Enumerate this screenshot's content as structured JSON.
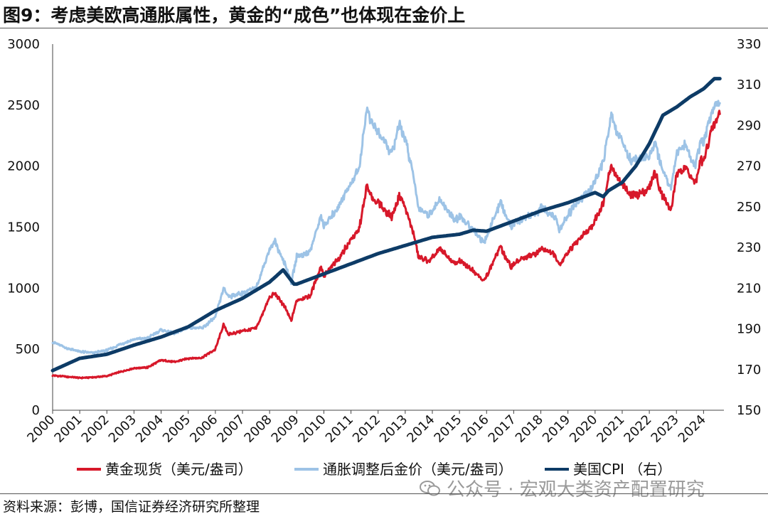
{
  "title": "图9：考虑美欧高通胀属性，黄金的“成色”也体现在金价上",
  "source": "资料来源：彭博，国信证券经济研究所整理",
  "watermark": "公众号 · 宏观大类资产配置研究",
  "colors": {
    "gold_spot": "#d7182a",
    "gold_real": "#9dc3e6",
    "cpi": "#0d3b66",
    "axis": "#444444"
  },
  "chart_data": {
    "type": "line",
    "x_range": [
      2000,
      2024.75
    ],
    "ylim_left": [
      0,
      3000
    ],
    "ylim_right": [
      150,
      330
    ],
    "y_ticks_left": [
      0,
      500,
      1000,
      1500,
      2000,
      2500,
      3000
    ],
    "y_ticks_right": [
      150,
      170,
      190,
      210,
      230,
      250,
      270,
      290,
      310,
      330
    ],
    "x_tick_labels": [
      "2000",
      "2001",
      "2002",
      "2003",
      "2004",
      "2005",
      "2006",
      "2007",
      "2008",
      "2009",
      "2010",
      "2011",
      "2012",
      "2013",
      "2014",
      "2015",
      "2016",
      "2017",
      "2018",
      "2019",
      "2020",
      "2021",
      "2022",
      "2023",
      "2024"
    ],
    "grid": false,
    "legend_position": "bottom",
    "series": [
      {
        "name": "黄金现货（美元/盎司）",
        "axis": "left",
        "color_key": "gold_spot",
        "points": [
          [
            2000,
            285
          ],
          [
            2000.5,
            275
          ],
          [
            2001,
            265
          ],
          [
            2001.5,
            270
          ],
          [
            2002,
            280
          ],
          [
            2002.5,
            315
          ],
          [
            2003,
            345
          ],
          [
            2003.5,
            350
          ],
          [
            2004,
            410
          ],
          [
            2004.5,
            395
          ],
          [
            2005,
            425
          ],
          [
            2005.5,
            430
          ],
          [
            2006,
            500
          ],
          [
            2006.3,
            700
          ],
          [
            2006.5,
            620
          ],
          [
            2007,
            650
          ],
          [
            2007.5,
            670
          ],
          [
            2008,
            920
          ],
          [
            2008.2,
            960
          ],
          [
            2008.6,
            830
          ],
          [
            2008.8,
            730
          ],
          [
            2009,
            900
          ],
          [
            2009.5,
            940
          ],
          [
            2009.9,
            1180
          ],
          [
            2010,
            1100
          ],
          [
            2010.5,
            1230
          ],
          [
            2011,
            1400
          ],
          [
            2011.3,
            1480
          ],
          [
            2011.6,
            1850
          ],
          [
            2011.7,
            1760
          ],
          [
            2012,
            1700
          ],
          [
            2012.5,
            1580
          ],
          [
            2012.8,
            1760
          ],
          [
            2013,
            1660
          ],
          [
            2013.3,
            1450
          ],
          [
            2013.5,
            1250
          ],
          [
            2013.9,
            1220
          ],
          [
            2014,
            1250
          ],
          [
            2014.3,
            1320
          ],
          [
            2014.8,
            1200
          ],
          [
            2015,
            1220
          ],
          [
            2015.5,
            1150
          ],
          [
            2015.9,
            1060
          ],
          [
            2016,
            1100
          ],
          [
            2016.5,
            1340
          ],
          [
            2016.9,
            1170
          ],
          [
            2017,
            1200
          ],
          [
            2017.5,
            1260
          ],
          [
            2017.9,
            1290
          ],
          [
            2018,
            1330
          ],
          [
            2018.5,
            1280
          ],
          [
            2018.7,
            1190
          ],
          [
            2019,
            1300
          ],
          [
            2019.5,
            1420
          ],
          [
            2019.9,
            1500
          ],
          [
            2020,
            1560
          ],
          [
            2020.3,
            1700
          ],
          [
            2020.6,
            2020
          ],
          [
            2020.8,
            1900
          ],
          [
            2021,
            1860
          ],
          [
            2021.3,
            1750
          ],
          [
            2021.7,
            1780
          ],
          [
            2022,
            1820
          ],
          [
            2022.2,
            1950
          ],
          [
            2022.5,
            1750
          ],
          [
            2022.8,
            1640
          ],
          [
            2023,
            1920
          ],
          [
            2023.3,
            2000
          ],
          [
            2023.7,
            1850
          ],
          [
            2023.9,
            2050
          ],
          [
            2024,
            2030
          ],
          [
            2024.3,
            2300
          ],
          [
            2024.5,
            2380
          ],
          [
            2024.6,
            2450
          ]
        ]
      },
      {
        "name": "通胀调整后金价（美元/盎司）",
        "axis": "left",
        "color_key": "gold_real",
        "points": [
          [
            2000,
            560
          ],
          [
            2000.5,
            510
          ],
          [
            2001,
            480
          ],
          [
            2001.5,
            470
          ],
          [
            2002,
            490
          ],
          [
            2002.5,
            540
          ],
          [
            2003,
            580
          ],
          [
            2003.5,
            590
          ],
          [
            2004,
            660
          ],
          [
            2004.5,
            630
          ],
          [
            2005,
            680
          ],
          [
            2005.5,
            670
          ],
          [
            2006,
            760
          ],
          [
            2006.3,
            1000
          ],
          [
            2006.5,
            930
          ],
          [
            2007,
            960
          ],
          [
            2007.5,
            1000
          ],
          [
            2008,
            1320
          ],
          [
            2008.2,
            1380
          ],
          [
            2008.6,
            1180
          ],
          [
            2008.8,
            1050
          ],
          [
            2009,
            1260
          ],
          [
            2009.5,
            1300
          ],
          [
            2009.9,
            1600
          ],
          [
            2010,
            1500
          ],
          [
            2010.5,
            1660
          ],
          [
            2011,
            1860
          ],
          [
            2011.3,
            1980
          ],
          [
            2011.6,
            2500
          ],
          [
            2011.7,
            2380
          ],
          [
            2012,
            2280
          ],
          [
            2012.5,
            2100
          ],
          [
            2012.8,
            2350
          ],
          [
            2013,
            2220
          ],
          [
            2013.3,
            1920
          ],
          [
            2013.5,
            1650
          ],
          [
            2013.9,
            1600
          ],
          [
            2014,
            1640
          ],
          [
            2014.3,
            1720
          ],
          [
            2014.8,
            1560
          ],
          [
            2015,
            1580
          ],
          [
            2015.5,
            1490
          ],
          [
            2015.9,
            1370
          ],
          [
            2016,
            1420
          ],
          [
            2016.5,
            1700
          ],
          [
            2016.9,
            1500
          ],
          [
            2017,
            1530
          ],
          [
            2017.5,
            1590
          ],
          [
            2017.9,
            1620
          ],
          [
            2018,
            1660
          ],
          [
            2018.5,
            1590
          ],
          [
            2018.7,
            1470
          ],
          [
            2019,
            1600
          ],
          [
            2019.5,
            1740
          ],
          [
            2019.9,
            1820
          ],
          [
            2020,
            1880
          ],
          [
            2020.3,
            2040
          ],
          [
            2020.6,
            2420
          ],
          [
            2020.8,
            2270
          ],
          [
            2021,
            2200
          ],
          [
            2021.3,
            2050
          ],
          [
            2021.7,
            2060
          ],
          [
            2022,
            2080
          ],
          [
            2022.2,
            2200
          ],
          [
            2022.5,
            1960
          ],
          [
            2022.8,
            1830
          ],
          [
            2023,
            2100
          ],
          [
            2023.3,
            2180
          ],
          [
            2023.7,
            2000
          ],
          [
            2023.9,
            2200
          ],
          [
            2024,
            2180
          ],
          [
            2024.3,
            2450
          ],
          [
            2024.5,
            2530
          ],
          [
            2024.6,
            2500
          ]
        ]
      },
      {
        "name": "美国CPI （右）",
        "axis": "right",
        "color_key": "cpi",
        "points": [
          [
            2000,
            169.5
          ],
          [
            2001,
            175.5
          ],
          [
            2002,
            177.5
          ],
          [
            2003,
            182
          ],
          [
            2004,
            186
          ],
          [
            2005,
            191
          ],
          [
            2006,
            199
          ],
          [
            2007,
            205
          ],
          [
            2008,
            213
          ],
          [
            2008.5,
            219
          ],
          [
            2008.9,
            212
          ],
          [
            2009,
            212
          ],
          [
            2010,
            217
          ],
          [
            2011,
            222
          ],
          [
            2012,
            227
          ],
          [
            2013,
            231
          ],
          [
            2014,
            235
          ],
          [
            2015,
            236.5
          ],
          [
            2015.5,
            238.5
          ],
          [
            2016,
            238
          ],
          [
            2017,
            243
          ],
          [
            2018,
            248
          ],
          [
            2019,
            252
          ],
          [
            2020,
            257
          ],
          [
            2020.3,
            255
          ],
          [
            2020.5,
            258
          ],
          [
            2021,
            262
          ],
          [
            2021.5,
            270
          ],
          [
            2022,
            281
          ],
          [
            2022.5,
            295
          ],
          [
            2023,
            299
          ],
          [
            2023.5,
            304
          ],
          [
            2024,
            308
          ],
          [
            2024.4,
            313
          ],
          [
            2024.6,
            313
          ]
        ]
      }
    ]
  }
}
